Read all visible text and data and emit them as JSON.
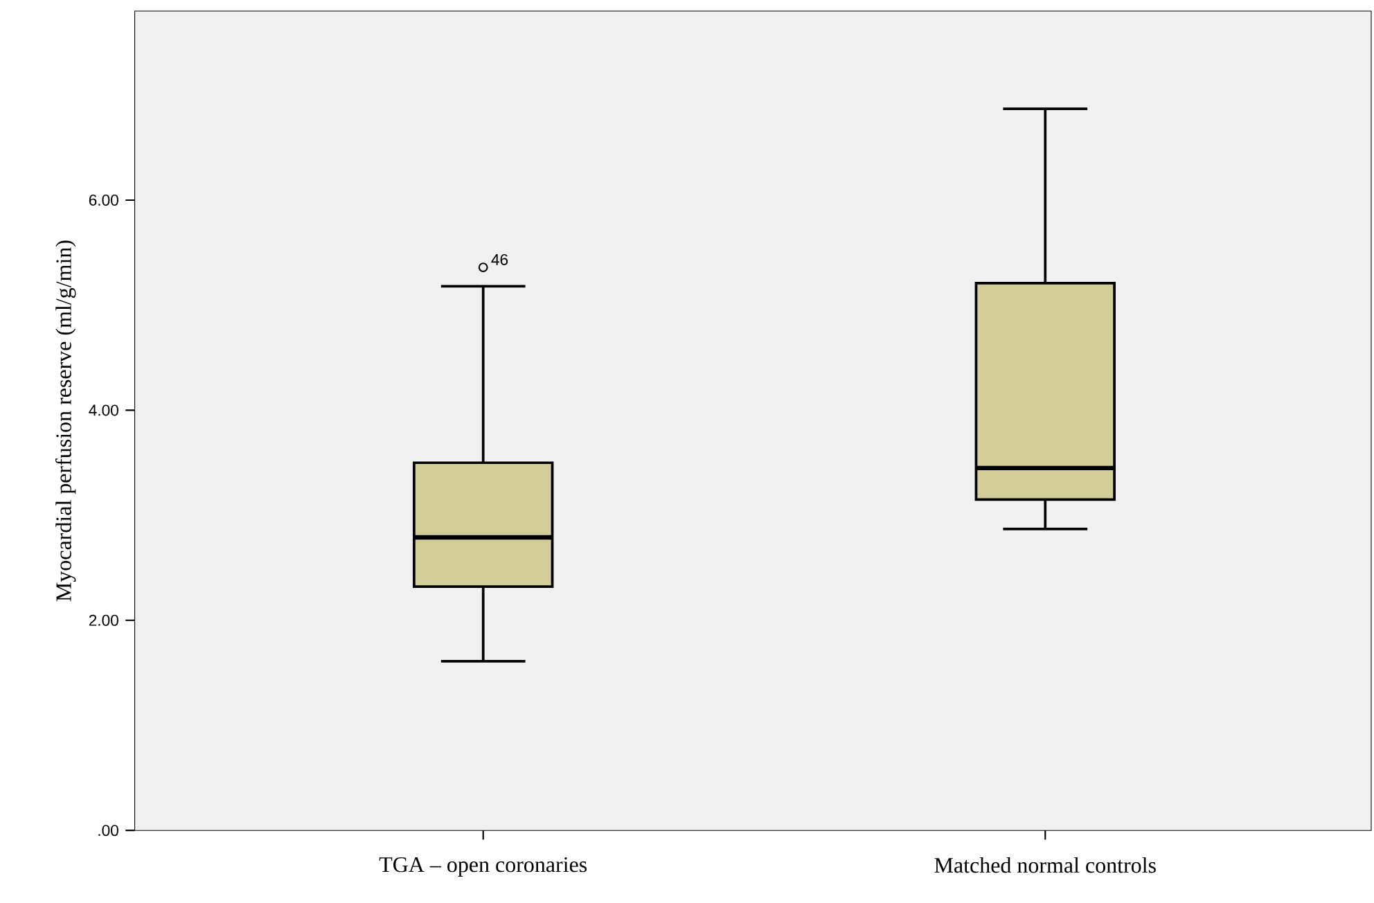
{
  "chart_data": {
    "type": "box",
    "ylabel": "Myocardial perfusion reserve (ml/g/min)",
    "categories": [
      "TGA – open coronaries",
      "Matched normal controls"
    ],
    "boxes": [
      {
        "low": 1.61,
        "q1": 2.32,
        "median": 2.79,
        "q3": 3.5,
        "high": 5.18,
        "outliers": [
          5.36
        ]
      },
      {
        "low": 2.87,
        "q1": 3.15,
        "median": 3.45,
        "q3": 5.21,
        "high": 6.87
      }
    ],
    "color": "#d3ce98",
    "ylim": [
      0,
      7.8
    ],
    "yticks": [
      {
        "value": 0,
        "label": ".00"
      },
      {
        "value": 2,
        "label": "2.00"
      },
      {
        "value": 4,
        "label": "4.00"
      },
      {
        "value": 6,
        "label": "6.00"
      }
    ],
    "marker": "circle",
    "annotations": [
      "46"
    ]
  }
}
